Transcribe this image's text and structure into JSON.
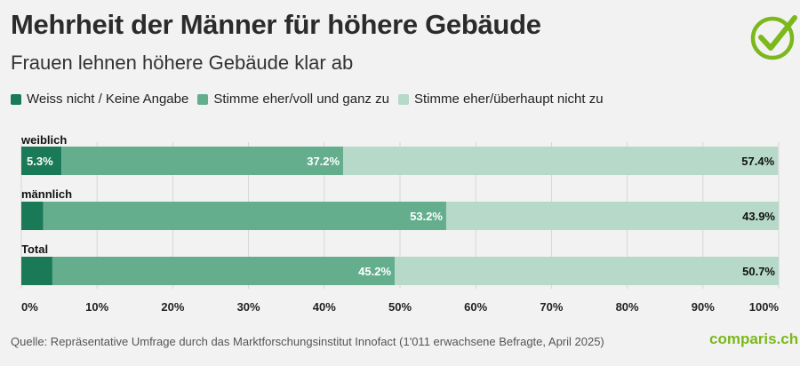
{
  "header": {
    "title": "Mehrheit der Männer für höhere Gebäude",
    "subtitle": "Frauen lehnen höhere Gebäude klar ab"
  },
  "legend": [
    {
      "label": "Weiss nicht / Keine Angabe",
      "color": "#1a7a58"
    },
    {
      "label": "Stimme eher/voll und ganz zu",
      "color": "#64ae8e"
    },
    {
      "label": "Stimme eher/überhaupt nicht zu",
      "color": "#b6d9c9"
    }
  ],
  "logo": {
    "icon": "checkmark-circle-icon",
    "color": "#7cb81c"
  },
  "footer": {
    "source": "Quelle: Repräsentative Umfrage durch das Marktforschungsinstitut Innofact (1'011 erwachsene Befragte, April 2025)",
    "brand": "comparis.ch"
  },
  "chart_data": {
    "type": "bar",
    "orientation": "horizontal",
    "stacked": true,
    "categories": [
      "weiblich",
      "männlich",
      "Total"
    ],
    "series": [
      {
        "name": "Weiss nicht / Keine Angabe",
        "values": [
          5.3,
          2.9,
          4.1
        ],
        "labels": [
          "5.3%",
          "",
          ""
        ],
        "color": "#1a7a58"
      },
      {
        "name": "Stimme eher/voll und ganz zu",
        "values": [
          37.2,
          53.2,
          45.2
        ],
        "labels": [
          "37.2%",
          "53.2%",
          "45.2%"
        ],
        "color": "#64ae8e"
      },
      {
        "name": "Stimme eher/überhaupt nicht zu",
        "values": [
          57.4,
          43.9,
          50.7
        ],
        "labels": [
          "57.4%",
          "43.9%",
          "50.7%"
        ],
        "color": "#b6d9c9"
      }
    ],
    "xlim": [
      0,
      100
    ],
    "xticks": [
      "0%",
      "10%",
      "20%",
      "30%",
      "40%",
      "50%",
      "60%",
      "70%",
      "80%",
      "90%",
      "100%"
    ],
    "grid": true,
    "legend_position": "top"
  }
}
